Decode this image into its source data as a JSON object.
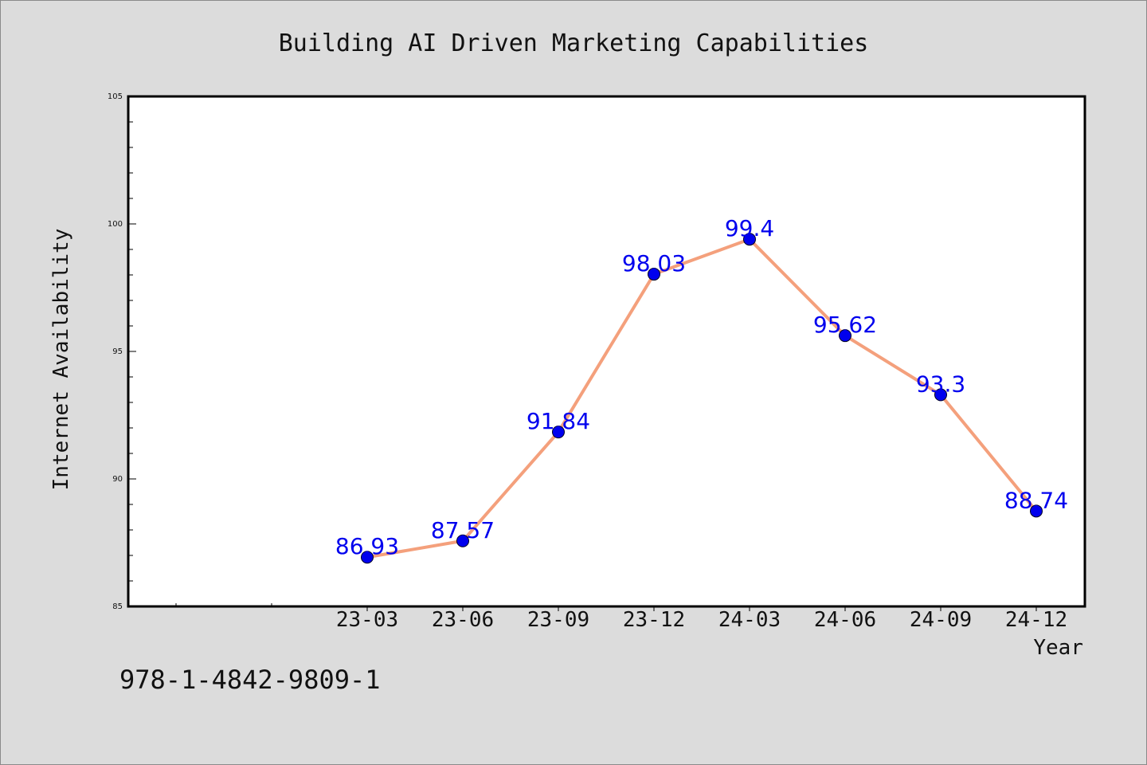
{
  "chart_data": {
    "type": "line",
    "title": "Building AI Driven Marketing Capabilities",
    "xlabel": "Year",
    "ylabel": "Internet Availability",
    "categories": [
      "23-03",
      "23-06",
      "23-09",
      "23-12",
      "24-03",
      "24-06",
      "24-09",
      "24-12"
    ],
    "values": [
      86.93,
      87.57,
      91.84,
      98.03,
      99.4,
      95.62,
      93.3,
      88.74
    ],
    "data_labels": [
      "86.93",
      "87.57",
      "91.84",
      "98.03",
      "99.4",
      "95.62",
      "93.3",
      "88.74"
    ],
    "ylim": [
      85,
      105
    ],
    "yticks": [
      85,
      90,
      95,
      100,
      105
    ],
    "grid": false,
    "line_color": "#f4a07c",
    "marker_color": "#0000ee",
    "label_color": "#0000ee"
  },
  "footer": {
    "isbn": "978-1-4842-9809-1"
  }
}
